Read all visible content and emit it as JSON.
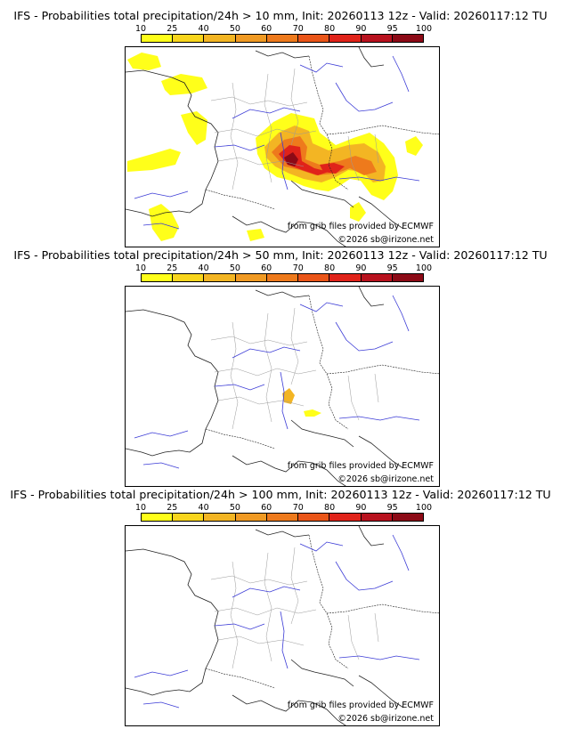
{
  "colorbar": {
    "labels": [
      "10",
      "25",
      "40",
      "50",
      "60",
      "70",
      "80",
      "90",
      "95",
      "100"
    ],
    "colors": [
      "#ffff1a",
      "#f8d51c",
      "#f3b523",
      "#f09a23",
      "#ee7a1c",
      "#ea5518",
      "#e0231a",
      "#b8121e",
      "#8c0a16",
      "#5a0610"
    ]
  },
  "panels": [
    {
      "title": "IFS - Probabilities total precipitation/24h > 10 mm, Init: 20260113 12z - Valid: 20260117:12 TU",
      "source_note": "from grib files provided by ECMWF",
      "copyright": "©2026 sb@irizone.net"
    },
    {
      "title": "IFS - Probabilities total precipitation/24h > 50 mm, Init: 20260113 12z - Valid: 20260117:12 TU",
      "source_note": "from grib files provided by ECMWF",
      "copyright": "©2026 sb@irizone.net"
    },
    {
      "title": "IFS - Probabilities total precipitation/24h > 100 mm, Init: 20260113 12z - Valid: 20260117:12 TU",
      "source_note": "from grib files provided by ECMWF",
      "copyright": "©2026 sb@irizone.net"
    }
  ]
}
